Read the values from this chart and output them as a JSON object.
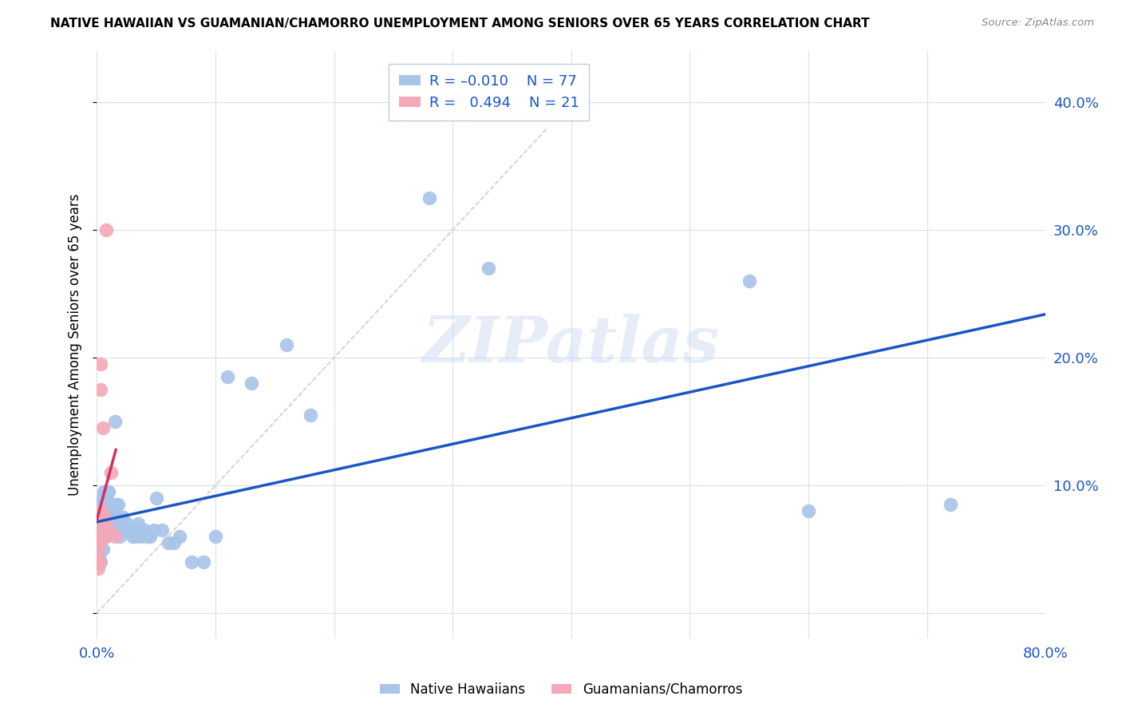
{
  "title": "NATIVE HAWAIIAN VS GUAMANIAN/CHAMORRO UNEMPLOYMENT AMONG SENIORS OVER 65 YEARS CORRELATION CHART",
  "source": "Source: ZipAtlas.com",
  "ylabel": "Unemployment Among Seniors over 65 years",
  "xlim": [
    0.0,
    0.8
  ],
  "ylim": [
    -0.02,
    0.44
  ],
  "xticks": [
    0.0,
    0.1,
    0.2,
    0.3,
    0.4,
    0.5,
    0.6,
    0.7,
    0.8
  ],
  "xticklabels": [
    "0.0%",
    "",
    "",
    "",
    "",
    "",
    "",
    "",
    "80.0%"
  ],
  "yticks": [
    0.0,
    0.1,
    0.2,
    0.3,
    0.4
  ],
  "yticklabels": [
    "",
    "10.0%",
    "20.0%",
    "30.0%",
    "40.0%"
  ],
  "color_blue": "#A8C4E8",
  "color_pink": "#F4A8B8",
  "line_blue": "#1A56C4",
  "line_pink": "#D03060",
  "line_gray": "#C8C8C8",
  "watermark_text": "ZIPatlas",
  "blue_x": [
    0.001,
    0.001,
    0.001,
    0.001,
    0.001,
    0.002,
    0.002,
    0.002,
    0.002,
    0.002,
    0.003,
    0.003,
    0.003,
    0.003,
    0.004,
    0.004,
    0.004,
    0.005,
    0.005,
    0.005,
    0.006,
    0.006,
    0.006,
    0.007,
    0.007,
    0.008,
    0.008,
    0.008,
    0.009,
    0.009,
    0.01,
    0.011,
    0.012,
    0.013,
    0.013,
    0.014,
    0.015,
    0.016,
    0.016,
    0.017,
    0.018,
    0.019,
    0.02,
    0.021,
    0.022,
    0.023,
    0.024,
    0.025,
    0.026,
    0.027,
    0.028,
    0.03,
    0.032,
    0.033,
    0.035,
    0.037,
    0.04,
    0.042,
    0.045,
    0.048,
    0.05,
    0.055,
    0.06,
    0.065,
    0.07,
    0.08,
    0.09,
    0.1,
    0.11,
    0.13,
    0.16,
    0.18,
    0.28,
    0.33,
    0.55,
    0.6,
    0.72
  ],
  "blue_y": [
    0.07,
    0.06,
    0.055,
    0.05,
    0.04,
    0.06,
    0.055,
    0.05,
    0.045,
    0.04,
    0.07,
    0.06,
    0.05,
    0.04,
    0.085,
    0.075,
    0.06,
    0.09,
    0.065,
    0.05,
    0.095,
    0.085,
    0.06,
    0.095,
    0.085,
    0.095,
    0.085,
    0.06,
    0.095,
    0.08,
    0.095,
    0.085,
    0.08,
    0.085,
    0.075,
    0.08,
    0.15,
    0.085,
    0.07,
    0.065,
    0.085,
    0.06,
    0.075,
    0.07,
    0.075,
    0.065,
    0.065,
    0.07,
    0.065,
    0.065,
    0.065,
    0.06,
    0.06,
    0.065,
    0.07,
    0.06,
    0.065,
    0.06,
    0.06,
    0.065,
    0.09,
    0.065,
    0.055,
    0.055,
    0.06,
    0.04,
    0.04,
    0.06,
    0.185,
    0.18,
    0.21,
    0.155,
    0.325,
    0.27,
    0.26,
    0.08,
    0.085
  ],
  "pink_x": [
    0.001,
    0.001,
    0.001,
    0.001,
    0.001,
    0.001,
    0.002,
    0.002,
    0.003,
    0.003,
    0.004,
    0.004,
    0.005,
    0.005,
    0.006,
    0.007,
    0.007,
    0.008,
    0.01,
    0.012,
    0.015
  ],
  "pink_y": [
    0.065,
    0.06,
    0.055,
    0.05,
    0.04,
    0.035,
    0.055,
    0.04,
    0.195,
    0.175,
    0.08,
    0.065,
    0.145,
    0.075,
    0.075,
    0.07,
    0.06,
    0.3,
    0.065,
    0.11,
    0.06
  ]
}
